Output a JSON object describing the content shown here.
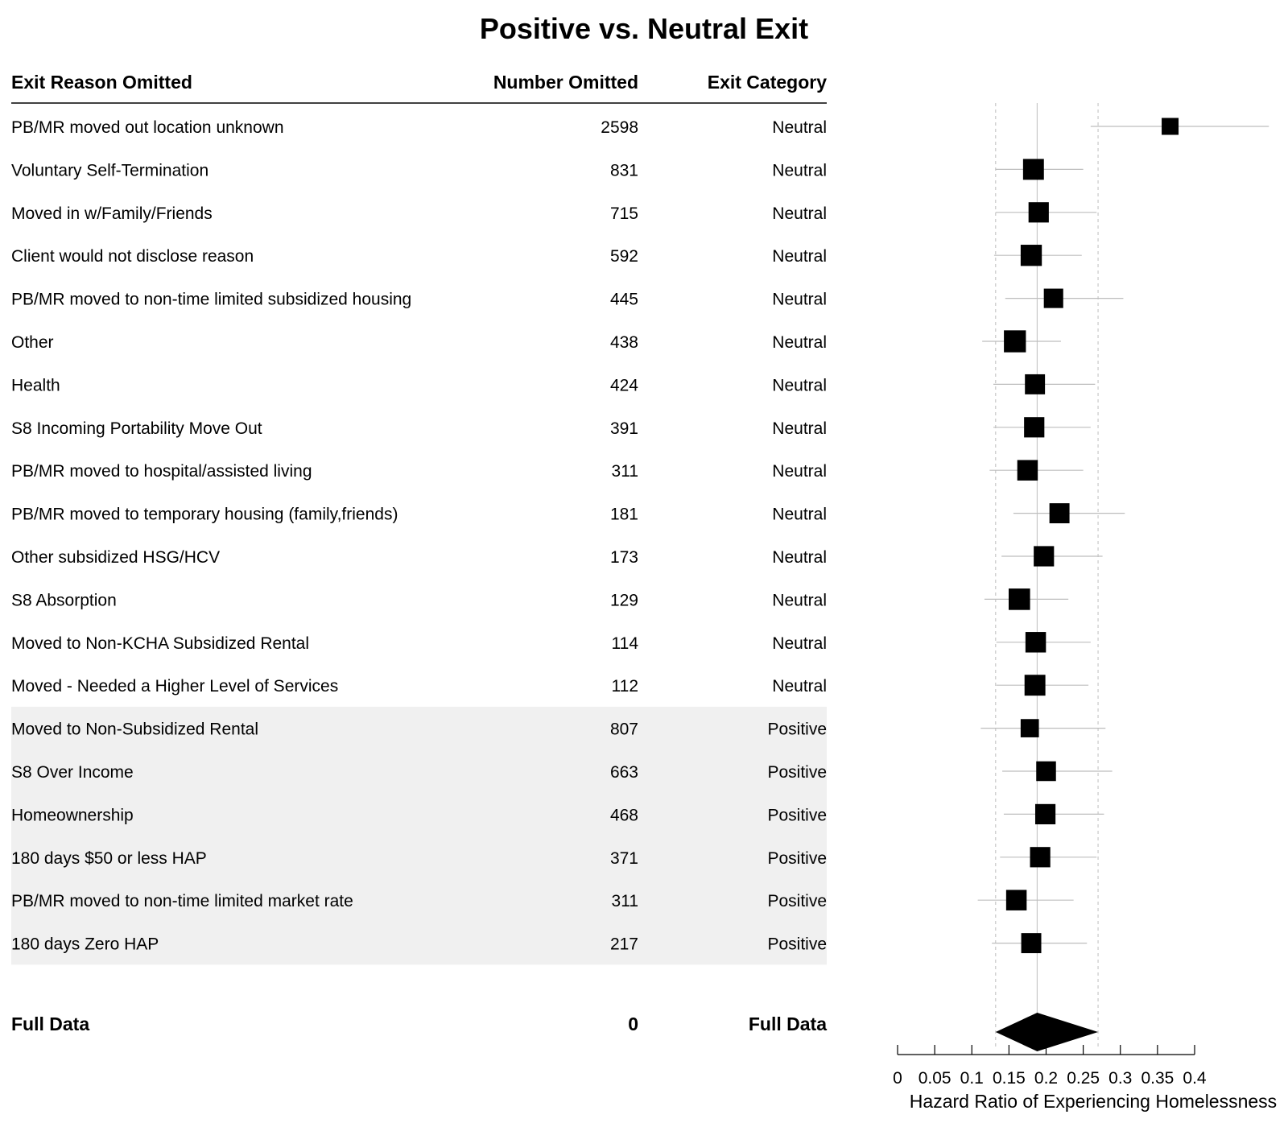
{
  "chart_data": {
    "type": "forest",
    "title": "Positive vs. Neutral Exit",
    "columns": {
      "reason": "Exit Reason Omitted",
      "number": "Number Omitted",
      "category": "Exit Category"
    },
    "xlabel": "Hazard Ratio of Experiencing Homelessness",
    "xlim": [
      0,
      0.4
    ],
    "xticks": [
      "0",
      "0.05",
      "0.1",
      "0.15",
      "0.2",
      "0.25",
      "0.3",
      "0.35",
      "0.4"
    ],
    "reference_lines": {
      "point": 0.188,
      "ci_lower": 0.132,
      "ci_upper": 0.27
    },
    "rows": [
      {
        "reason": "PB/MR moved out location unknown",
        "number": "2598",
        "category": "Neutral",
        "hr": 0.367,
        "lo": 0.26,
        "hi": 0.52,
        "weight": 0.5
      },
      {
        "reason": "Voluntary Self-Termination",
        "number": "831",
        "category": "Neutral",
        "hr": 0.183,
        "lo": 0.132,
        "hi": 0.25,
        "weight": 0.85
      },
      {
        "reason": "Moved in w/Family/Friends",
        "number": "715",
        "category": "Neutral",
        "hr": 0.19,
        "lo": 0.132,
        "hi": 0.268,
        "weight": 0.8
      },
      {
        "reason": "Client would not disclose reason",
        "number": "592",
        "category": "Neutral",
        "hr": 0.18,
        "lo": 0.13,
        "hi": 0.248,
        "weight": 0.88
      },
      {
        "reason": "PB/MR moved to non-time limited subsidized housing",
        "number": "445",
        "category": "Neutral",
        "hr": 0.21,
        "lo": 0.145,
        "hi": 0.304,
        "weight": 0.72
      },
      {
        "reason": "Other",
        "number": "438",
        "category": "Neutral",
        "hr": 0.158,
        "lo": 0.114,
        "hi": 0.22,
        "weight": 0.95
      },
      {
        "reason": "Health",
        "number": "424",
        "category": "Neutral",
        "hr": 0.185,
        "lo": 0.129,
        "hi": 0.266,
        "weight": 0.78
      },
      {
        "reason": "S8 Incoming Portability Move Out",
        "number": "391",
        "category": "Neutral",
        "hr": 0.184,
        "lo": 0.129,
        "hi": 0.26,
        "weight": 0.8
      },
      {
        "reason": "PB/MR moved to hospital/assisted living",
        "number": "311",
        "category": "Neutral",
        "hr": 0.175,
        "lo": 0.124,
        "hi": 0.25,
        "weight": 0.82
      },
      {
        "reason": "PB/MR moved to temporary housing (family,friends)",
        "number": "181",
        "category": "Neutral",
        "hr": 0.218,
        "lo": 0.156,
        "hi": 0.306,
        "weight": 0.78
      },
      {
        "reason": "Other subsidized HSG/HCV",
        "number": "173",
        "category": "Neutral",
        "hr": 0.197,
        "lo": 0.14,
        "hi": 0.276,
        "weight": 0.8
      },
      {
        "reason": "S8 Absorption",
        "number": "129",
        "category": "Neutral",
        "hr": 0.164,
        "lo": 0.117,
        "hi": 0.23,
        "weight": 0.9
      },
      {
        "reason": "Moved to Non-KCHA Subsidized Rental",
        "number": "114",
        "category": "Neutral",
        "hr": 0.186,
        "lo": 0.133,
        "hi": 0.26,
        "weight": 0.82
      },
      {
        "reason": "Moved - Needed a Higher Level of Services",
        "number": "112",
        "category": "Neutral",
        "hr": 0.185,
        "lo": 0.133,
        "hi": 0.257,
        "weight": 0.85
      },
      {
        "reason": "Moved to Non-Subsidized Rental",
        "number": "807",
        "category": "Positive",
        "hr": 0.178,
        "lo": 0.112,
        "hi": 0.28,
        "weight": 0.62
      },
      {
        "reason": "S8 Over Income",
        "number": "663",
        "category": "Positive",
        "hr": 0.2,
        "lo": 0.141,
        "hi": 0.289,
        "weight": 0.75
      },
      {
        "reason": "Homeownership",
        "number": "468",
        "category": "Positive",
        "hr": 0.199,
        "lo": 0.143,
        "hi": 0.278,
        "weight": 0.8
      },
      {
        "reason": "180 days $50 or less HAP",
        "number": "371",
        "category": "Positive",
        "hr": 0.192,
        "lo": 0.138,
        "hi": 0.268,
        "weight": 0.8
      },
      {
        "reason": "PB/MR moved to non-time limited market rate",
        "number": "311",
        "category": "Positive",
        "hr": 0.16,
        "lo": 0.108,
        "hi": 0.237,
        "weight": 0.82
      },
      {
        "reason": "180 days Zero HAP",
        "number": "217",
        "category": "Positive",
        "hr": 0.18,
        "lo": 0.127,
        "hi": 0.255,
        "weight": 0.78
      }
    ],
    "summary": {
      "reason": "Full Data",
      "number": "0",
      "category": "Full Data",
      "hr": 0.188,
      "lo": 0.132,
      "hi": 0.27
    }
  }
}
